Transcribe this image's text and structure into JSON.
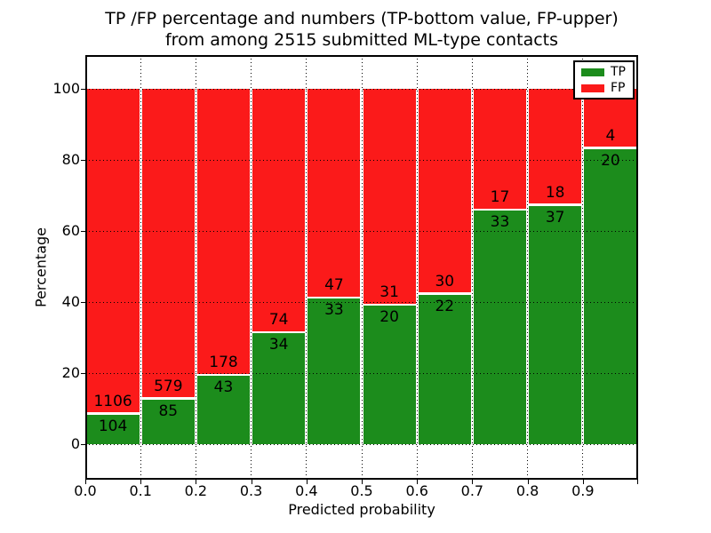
{
  "chart_data": {
    "type": "bar",
    "stacked": true,
    "normalized_to_percent": true,
    "title": "TP /FP percentage and numbers (TP-bottom value, FP-upper)\nfrom among 2515 submitted ML-type contacts",
    "title_lines": [
      "TP /FP percentage and numbers (TP-bottom value, FP-upper)",
      "from among 2515 submitted ML-type contacts"
    ],
    "xlabel": "Predicted probability",
    "ylabel": "Percentage",
    "total_contacts": 2515,
    "x_bin_width": 0.1,
    "xlim": [
      0.0,
      1.0
    ],
    "ylim": [
      -10,
      110
    ],
    "x_tick_labels": [
      "0.0",
      "0.1",
      "0.2",
      "0.3",
      "0.4",
      "0.5",
      "0.6",
      "0.7",
      "0.8",
      "0.9"
    ],
    "y_ticks": [
      0,
      20,
      40,
      60,
      80,
      100
    ],
    "y_tick_labels": [
      "0",
      "20",
      "40",
      "60",
      "80",
      "100"
    ],
    "categories": [
      "0.0-0.1",
      "0.1-0.2",
      "0.2-0.3",
      "0.3-0.4",
      "0.4-0.5",
      "0.5-0.6",
      "0.6-0.7",
      "0.7-0.8",
      "0.8-0.9",
      "0.9-1.0"
    ],
    "series": [
      {
        "name": "TP",
        "color": "#1c8c1c",
        "values": [
          104,
          85,
          43,
          34,
          33,
          20,
          22,
          33,
          37,
          20
        ]
      },
      {
        "name": "FP",
        "color": "#fb1a1a",
        "values": [
          1106,
          579,
          178,
          74,
          47,
          31,
          30,
          17,
          18,
          4
        ]
      }
    ],
    "tp_percent_of_bin": [
      8.6,
      12.8,
      19.5,
      31.5,
      41.3,
      39.2,
      42.3,
      66.0,
      67.3,
      83.3
    ],
    "legend": {
      "position": "upper right",
      "entries": [
        "TP",
        "FP"
      ]
    },
    "grid": {
      "on": true,
      "linestyle": "dotted",
      "color": "#000000"
    }
  }
}
